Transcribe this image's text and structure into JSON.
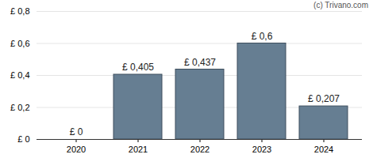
{
  "chart_data": {
    "type": "bar",
    "caption": "(c) Trivano.com",
    "categories": [
      "2020",
      "2021",
      "2022",
      "2023",
      "2024"
    ],
    "values": [
      0,
      0.405,
      0.437,
      0.6,
      0.207
    ],
    "value_labels": [
      "£ 0",
      "£ 0,405",
      "£ 0,437",
      "£ 0,6",
      "£ 0,207"
    ],
    "data_labels": true,
    "color": "#667e92",
    "ylim": [
      0,
      0.8
    ],
    "yticks": [
      {
        "value": 0,
        "label": "£ 0"
      },
      {
        "value": 0.2,
        "label": "£ 0,2"
      },
      {
        "value": 0.4,
        "label": "£ 0,4"
      },
      {
        "value": 0.6,
        "label": "£ 0,6"
      },
      {
        "value": 0.8,
        "label": "£ 0,8"
      }
    ],
    "grid": true
  }
}
